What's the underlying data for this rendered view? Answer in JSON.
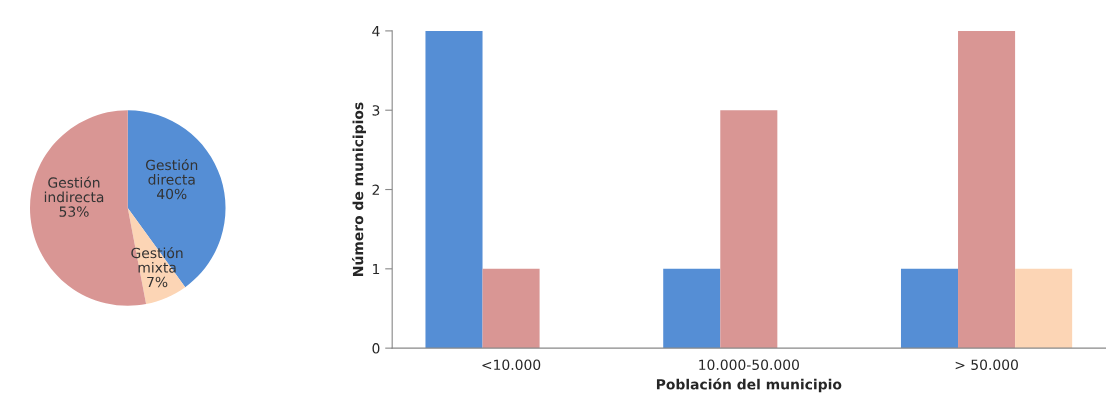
{
  "chart_data": [
    {
      "type": "pie",
      "categories": [
        "Gestión\ndirecta",
        "Gestión\nmixta",
        "Gestión\nindirecta"
      ],
      "values": [
        40,
        7,
        53
      ],
      "colors": [
        "#558ed5",
        "#fcd5b5",
        "#d99694"
      ],
      "value_labels": [
        "40%",
        "7%",
        "53%"
      ]
    },
    {
      "type": "bar",
      "categories": [
        "<10.000",
        "10.000-50.000",
        "> 50.000"
      ],
      "xlabel": "Población del municipio",
      "ylabel": "Número de municipios",
      "ylim": [
        0,
        4
      ],
      "yticks": [
        0,
        1,
        2,
        3,
        4
      ],
      "grid": false,
      "legend": false,
      "series": [
        {
          "color": "#558ed5",
          "values": [
            4,
            1,
            1
          ]
        },
        {
          "color": "#d99694",
          "values": [
            1,
            3,
            4
          ]
        },
        {
          "color": "#fcd5b5",
          "values": [
            null,
            null,
            1
          ]
        }
      ]
    }
  ]
}
